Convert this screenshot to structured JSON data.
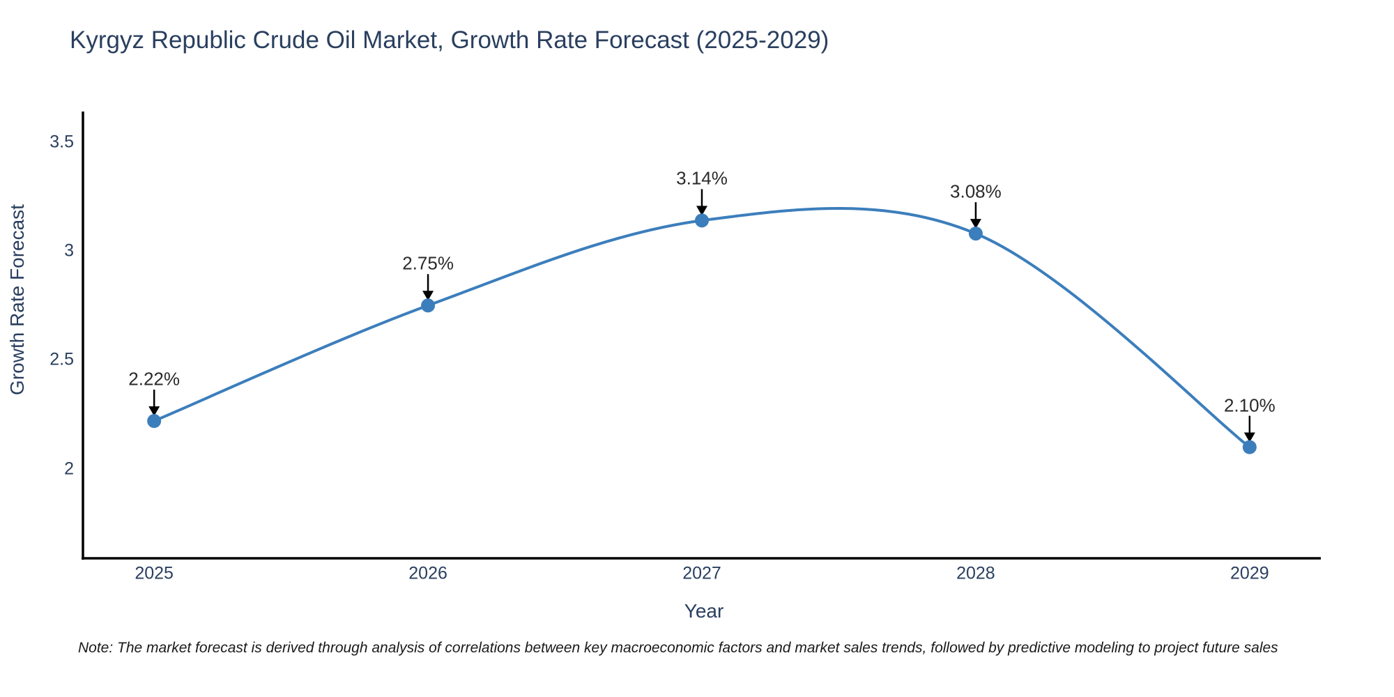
{
  "title": "Kyrgyz Republic Crude Oil Market, Growth Rate Forecast (2025-2029)",
  "note": "Note: The market forecast is derived through analysis of correlations between key macroeconomic factors and market sales trends, followed by predictive modeling to project future sales",
  "chart_data": {
    "type": "line",
    "title": "Kyrgyz Republic Crude Oil Market, Growth Rate Forecast (2025-2029)",
    "xlabel": "Year",
    "ylabel": "Growth Rate Forecast",
    "x": [
      2025,
      2026,
      2027,
      2028,
      2029
    ],
    "values": [
      2.22,
      2.75,
      3.14,
      3.08,
      2.1
    ],
    "point_labels": [
      "2.22%",
      "2.75%",
      "3.14%",
      "3.08%",
      "2.10%"
    ],
    "x_tick_labels": [
      "2025",
      "2026",
      "2027",
      "2028",
      "2029"
    ],
    "y_tick_values": [
      2,
      2.5,
      3,
      3.5
    ],
    "y_tick_labels": [
      "2",
      "2.5",
      "3",
      "3.5"
    ],
    "xlim": [
      2024.74,
      2029.26
    ],
    "ylim": [
      1.59,
      3.64
    ],
    "grid": false,
    "legend": "none",
    "line_style": "smooth-spline",
    "marker": "circle",
    "colors": {
      "line": "#3c7ebc",
      "marker": "#3c7ebc",
      "axis_spine": "#000000",
      "text": "#2a3f5f",
      "annotation": "#2a2a2a",
      "annotation_arrow": "#000000",
      "background": "#ffffff"
    }
  }
}
